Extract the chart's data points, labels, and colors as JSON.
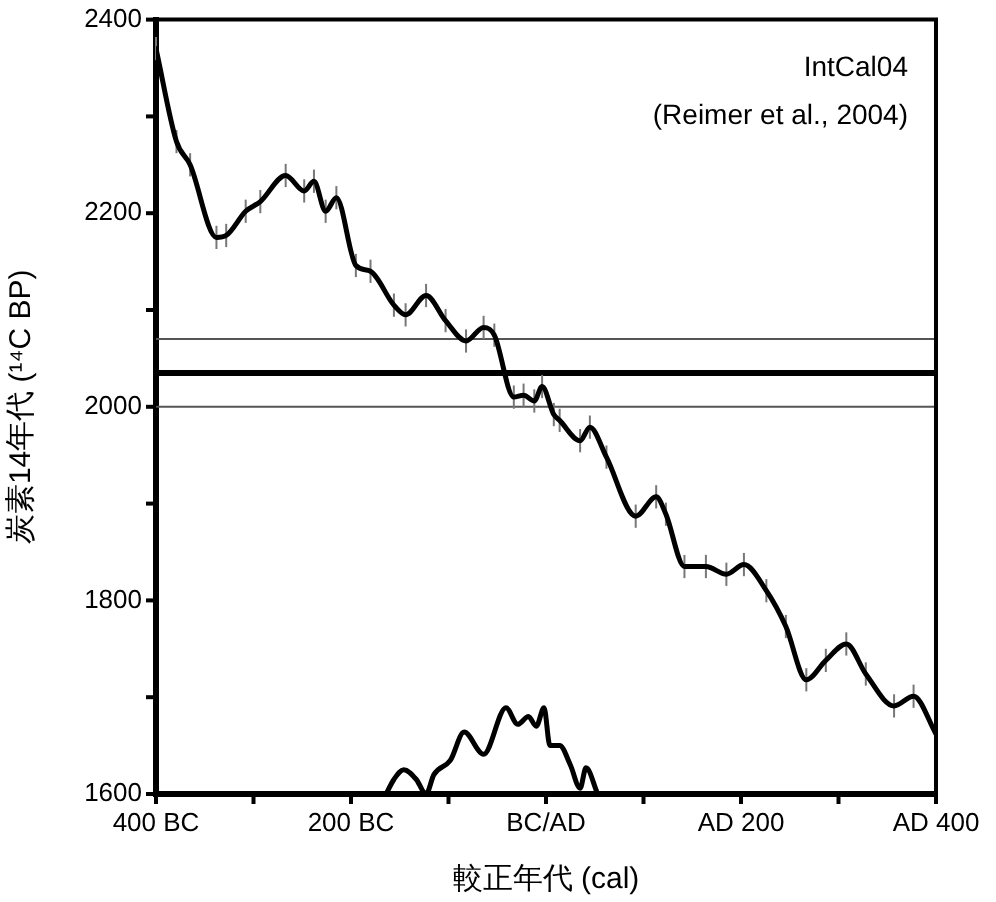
{
  "chart_data": {
    "type": "line",
    "xlabel": "較正年代 (cal)",
    "ylabel": "炭素14年代 (¹⁴C BP)",
    "annotations": [
      "IntCal04",
      "(Reimer et al., 2004)"
    ],
    "xlim": [
      -400,
      400
    ],
    "xticks": [
      {
        "value": -400,
        "label": "400 BC"
      },
      {
        "value": -300,
        "label": null
      },
      {
        "value": -200,
        "label": "200 BC"
      },
      {
        "value": -100,
        "label": null
      },
      {
        "value": 0,
        "label": "BC/AD"
      },
      {
        "value": 100,
        "label": null
      },
      {
        "value": 200,
        "label": "AD 200"
      },
      {
        "value": 300,
        "label": null
      },
      {
        "value": 400,
        "label": "AD 400"
      }
    ],
    "ylim": [
      1600,
      2400
    ],
    "yticks": [
      1600,
      {
        "value": 1700,
        "label": null
      },
      1800,
      {
        "value": 1900,
        "label": null
      },
      2000,
      {
        "value": 2100,
        "label": null
      },
      2200,
      {
        "value": 2300,
        "label": null
      },
      2400
    ],
    "grid": false,
    "legend": false,
    "marker": "none",
    "line_style": "solid",
    "ref_lines": [
      {
        "axis": "y",
        "value": 2070,
        "color": "#555555"
      },
      {
        "axis": "y",
        "value": 2035,
        "color": "#000000"
      },
      {
        "axis": "y",
        "value": 2000,
        "color": "#555555"
      }
    ],
    "series": [
      {
        "color": "#000000",
        "x": [
          -400,
          -379,
          -365,
          -338,
          -328,
          -308,
          -293,
          -267,
          -248,
          -238,
          -226,
          -215,
          -195,
          -180,
          -156,
          -144,
          -123,
          -103,
          -82,
          -64,
          -53,
          -33,
          -23,
          -12,
          -4,
          8,
          14,
          35,
          45,
          62,
          92,
          113,
          123,
          142,
          164,
          185,
          203,
          226,
          246,
          267,
          287,
          308,
          328,
          357,
          377,
          400
        ],
        "values": [
          2370,
          2274,
          2250,
          2175,
          2177,
          2202,
          2212,
          2239,
          2223,
          2233,
          2202,
          2216,
          2146,
          2140,
          2105,
          2095,
          2115,
          2089,
          2068,
          2082,
          2074,
          2010,
          2012,
          2006,
          2021,
          1992,
          1986,
          1965,
          1979,
          1948,
          1887,
          1907,
          1889,
          1835,
          1835,
          1827,
          1837,
          1810,
          1773,
          1718,
          1738,
          1755,
          1724,
          1691,
          1701,
          1662
        ],
        "errors": [
          12,
          12,
          12,
          12,
          12,
          12,
          12,
          12,
          12,
          12,
          12,
          12,
          12,
          12,
          12,
          12,
          12,
          12,
          12,
          12,
          12,
          12,
          12,
          12,
          12,
          12,
          12,
          12,
          12,
          12,
          12,
          12,
          12,
          12,
          12,
          12,
          12,
          12,
          12,
          12,
          12,
          12,
          12,
          12,
          12,
          12
        ]
      },
      {
        "color": "#000000",
        "x": [
          -164,
          -156,
          -146,
          -133,
          -123,
          -115,
          -98,
          -84,
          -64,
          -41,
          -29,
          -18,
          -10,
          -2,
          4,
          14,
          25,
          35,
          41,
          53
        ],
        "values": [
          1600,
          1615,
          1625,
          1615,
          1600,
          1620,
          1635,
          1664,
          1641,
          1689,
          1672,
          1680,
          1670,
          1689,
          1650,
          1650,
          1630,
          1606,
          1627,
          1600
        ]
      }
    ]
  }
}
